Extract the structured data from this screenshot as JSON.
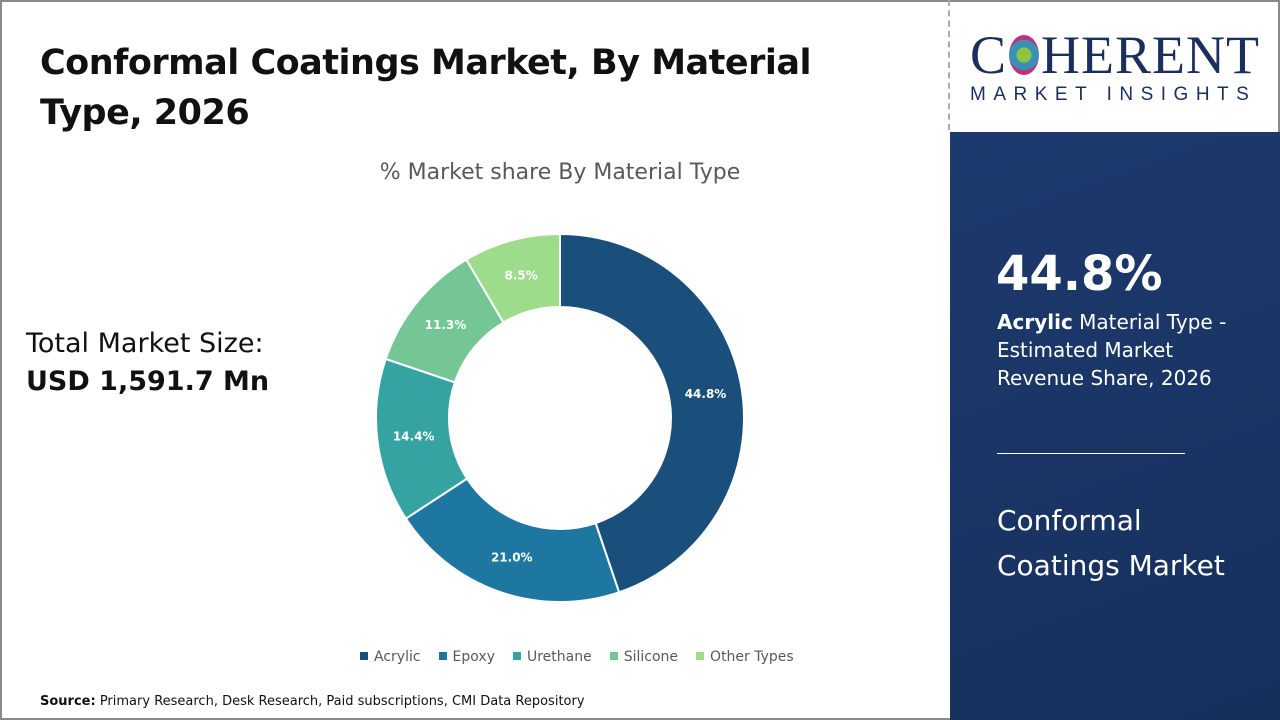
{
  "header": {
    "title": "Conformal Coatings Market, By Material Type, 2026"
  },
  "total": {
    "label": "Total Market Size:",
    "value": "USD 1,591.7 Mn"
  },
  "chart_data": {
    "type": "pie",
    "donut": true,
    "title": "% Market share By Material Type",
    "categories": [
      "Acrylic",
      "Epoxy",
      "Urethane",
      "Silicone",
      "Other Types"
    ],
    "values": [
      44.8,
      21.0,
      14.4,
      11.3,
      8.5
    ],
    "labels": [
      "44.8%",
      "21.0%",
      "14.4%",
      "11.3%",
      "8.5%"
    ],
    "colors": [
      "#1b4f7b",
      "#1e77a1",
      "#35a3a2",
      "#74c795",
      "#9ddc8b"
    ],
    "legend": "bottom"
  },
  "source": {
    "label": "Source:",
    "text": " Primary Research, Desk Research, Paid subscriptions, CMI Data Repository"
  },
  "logo": {
    "line1": "COHERENT",
    "line2": "MARKET INSIGHTS"
  },
  "highlight": {
    "value": "44.8%",
    "bold": "Acrylic",
    "desc": " Material Type - Estimated Market Revenue Share, 2026",
    "market": "Conformal Coatings Market"
  }
}
